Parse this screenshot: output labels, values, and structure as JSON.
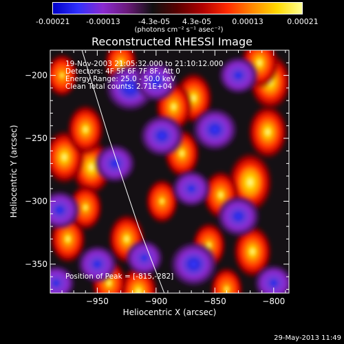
{
  "colorbar": {
    "ticks": [
      "-0.00021",
      "-0.00013",
      "-4.3e-05",
      "4.3e-05",
      "0.00013",
      "0.00021"
    ],
    "units": "(photons cm⁻² s⁻¹ asec⁻²)",
    "colors": [
      "#0000c8",
      "#3030ff",
      "#8a2ad0",
      "#6a1a7a",
      "#101010",
      "#5a0000",
      "#b00000",
      "#ff2a00",
      "#ff8800",
      "#ffd800",
      "#ffff90"
    ]
  },
  "chart_data": {
    "type": "heatmap",
    "title": "Reconstructed RHESSI Image",
    "xlabel": "Heliocentric X (arcsec)",
    "ylabel": "Heliocentric Y (arcsec)",
    "xlim": [
      -990,
      -787
    ],
    "ylim": [
      -373,
      -180
    ],
    "x_ticks": [
      -950,
      -900,
      -850,
      -800
    ],
    "y_ticks": [
      -200,
      -250,
      -300,
      -350
    ],
    "x_tick_labels": [
      "−950",
      "−900",
      "−850",
      "−800"
    ],
    "y_tick_labels": [
      "−200",
      "−250",
      "−300",
      "−350"
    ],
    "color_range": [
      -0.00021,
      0.00021
    ],
    "limb_line": [
      [
        -963,
        -180
      ],
      [
        -940,
        -250
      ],
      [
        -915,
        -320
      ],
      [
        -893,
        -373
      ]
    ],
    "blobs": [
      {
        "x": -820,
        "y": -285,
        "value": 0.00021
      },
      {
        "x": -805,
        "y": -245,
        "value": 0.00016
      },
      {
        "x": -818,
        "y": -340,
        "value": 0.00015
      },
      {
        "x": -803,
        "y": -205,
        "value": 0.00018
      },
      {
        "x": -812,
        "y": -190,
        "value": 0.00014
      },
      {
        "x": -955,
        "y": -273,
        "value": 0.00017
      },
      {
        "x": -978,
        "y": -265,
        "value": 0.00016
      },
      {
        "x": -960,
        "y": -243,
        "value": 0.00013
      },
      {
        "x": -868,
        "y": -218,
        "value": 0.00014
      },
      {
        "x": -885,
        "y": -225,
        "value": 0.00013
      },
      {
        "x": -878,
        "y": -262,
        "value": 0.00012
      },
      {
        "x": -925,
        "y": -330,
        "value": 0.00013
      },
      {
        "x": -915,
        "y": -372,
        "value": 0.00015
      },
      {
        "x": -940,
        "y": -365,
        "value": 0.00011
      },
      {
        "x": -975,
        "y": -330,
        "value": 0.00012
      },
      {
        "x": -960,
        "y": -305,
        "value": 0.0001
      },
      {
        "x": -845,
        "y": -295,
        "value": 0.00012
      },
      {
        "x": -855,
        "y": -335,
        "value": 0.0001
      },
      {
        "x": -930,
        "y": -190,
        "value": 9e-05
      },
      {
        "x": -980,
        "y": -200,
        "value": 8e-05
      },
      {
        "x": -895,
        "y": -300,
        "value": 9e-05
      },
      {
        "x": -840,
        "y": -370,
        "value": 9e-05
      },
      {
        "x": -922,
        "y": -210,
        "value": -0.00021
      },
      {
        "x": -868,
        "y": -350,
        "value": -0.00019
      },
      {
        "x": -850,
        "y": -243,
        "value": -0.00017
      },
      {
        "x": -895,
        "y": -248,
        "value": -0.00016
      },
      {
        "x": -830,
        "y": -312,
        "value": -0.00015
      },
      {
        "x": -900,
        "y": -205,
        "value": -0.00014
      },
      {
        "x": -935,
        "y": -270,
        "value": -0.00013
      },
      {
        "x": -982,
        "y": -307,
        "value": -0.00013
      },
      {
        "x": -950,
        "y": -350,
        "value": -0.00012
      },
      {
        "x": -830,
        "y": -200,
        "value": -0.00012
      },
      {
        "x": -870,
        "y": -290,
        "value": -0.00011
      },
      {
        "x": -800,
        "y": -365,
        "value": -0.00011
      },
      {
        "x": -985,
        "y": -365,
        "value": -0.0001
      },
      {
        "x": -910,
        "y": -345,
        "value": -0.0001
      }
    ]
  },
  "overlay": {
    "line1": "19-Nov-2003 21:05:32.000 to 21:10:12.000",
    "line2": "Detectors: 4F 5F 6F 7F 8F, Att 0",
    "line3": "Energy Range: 25.0 - 50.0 keV",
    "line4": "Clean    Total counts: 2.71E+04",
    "peak": "Position of Peak = [-815,-282]"
  },
  "footer": {
    "timestamp": "29-May-2013 11:49"
  }
}
